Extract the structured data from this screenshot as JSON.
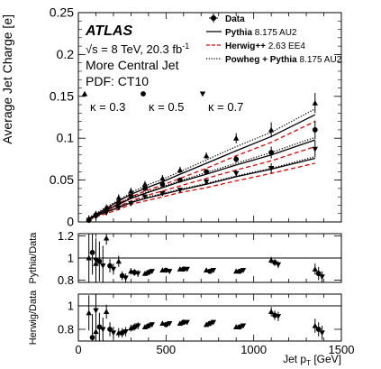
{
  "chart_data": [
    {
      "type": "scatter",
      "panel": "main",
      "ylabel": "Average Jet Charge [e]",
      "xlim": [
        0,
        1500
      ],
      "ylim": [
        0,
        0.25
      ],
      "yticks": [
        "0",
        "0.05",
        "0.1",
        "0.15",
        "0.2",
        "0.25"
      ],
      "annotations": {
        "experiment": "ATLAS",
        "energy_prefix": "√s = 8 TeV, 20.3 fb",
        "energy_sup": "-1",
        "selection": "More Central Jet",
        "pdf": "PDF: CT10"
      },
      "kappa_labels": [
        {
          "marker": "triangle-up",
          "text": "κ = 0.3"
        },
        {
          "marker": "circle",
          "text": "κ = 0.5"
        },
        {
          "marker": "triangle-down",
          "text": "κ = 0.7"
        }
      ],
      "legend": [
        {
          "style": "marker",
          "bold": "Data",
          "rest": ""
        },
        {
          "style": "solid",
          "bold": "Pythia",
          "rest": " 8.175 AU2"
        },
        {
          "style": "dashed",
          "bold": "Herwig++",
          "rest": " 2.63 EE4"
        },
        {
          "style": "dotted",
          "bold": "Powheg + Pythia",
          "rest": " 8.175 AU2"
        }
      ],
      "series": [
        {
          "name": "κ = 0.3",
          "marker": "triangle-up",
          "x": [
            60,
            100,
            160,
            230,
            300,
            380,
            480,
            580,
            730,
            900,
            1100,
            1350
          ],
          "y": [
            0.004,
            0.01,
            0.017,
            0.029,
            0.037,
            0.045,
            0.052,
            0.062,
            0.079,
            0.1,
            0.11,
            0.142
          ],
          "err": [
            0.004,
            0.003,
            0.004,
            0.004,
            0.004,
            0.004,
            0.004,
            0.004,
            0.004,
            0.006,
            0.009,
            0.012
          ],
          "pythia": [
            0.004,
            0.009,
            0.016,
            0.025,
            0.033,
            0.04,
            0.048,
            0.057,
            0.07,
            0.085,
            0.102,
            0.128
          ],
          "herwig": [
            0.003,
            0.008,
            0.015,
            0.022,
            0.03,
            0.037,
            0.044,
            0.052,
            0.064,
            0.079,
            0.095,
            0.12
          ],
          "powheg": [
            0.005,
            0.01,
            0.018,
            0.026,
            0.035,
            0.043,
            0.051,
            0.06,
            0.074,
            0.09,
            0.107,
            0.135
          ]
        },
        {
          "name": "κ = 0.5",
          "marker": "circle",
          "x": [
            60,
            100,
            160,
            230,
            300,
            380,
            480,
            580,
            730,
            900,
            1100,
            1350
          ],
          "y": [
            0.002,
            0.008,
            0.015,
            0.023,
            0.031,
            0.04,
            0.045,
            0.05,
            0.06,
            0.075,
            0.083,
            0.11
          ],
          "err": [
            0.003,
            0.003,
            0.003,
            0.003,
            0.003,
            0.003,
            0.003,
            0.003,
            0.003,
            0.004,
            0.007,
            0.011
          ],
          "pythia": [
            0.004,
            0.008,
            0.014,
            0.021,
            0.028,
            0.034,
            0.041,
            0.048,
            0.057,
            0.068,
            0.08,
            0.098
          ],
          "herwig": [
            0.003,
            0.007,
            0.012,
            0.019,
            0.025,
            0.031,
            0.037,
            0.043,
            0.052,
            0.062,
            0.073,
            0.09
          ],
          "powheg": [
            0.004,
            0.008,
            0.014,
            0.022,
            0.029,
            0.035,
            0.042,
            0.049,
            0.059,
            0.07,
            0.083,
            0.101
          ]
        },
        {
          "name": "κ = 0.7",
          "marker": "triangle-down",
          "x": [
            60,
            100,
            160,
            230,
            300,
            380,
            480,
            580,
            730,
            900,
            1100,
            1350
          ],
          "y": [
            0.002,
            0.006,
            0.011,
            0.017,
            0.022,
            0.03,
            0.034,
            0.038,
            0.048,
            0.058,
            0.064,
            0.087
          ],
          "err": [
            0.003,
            0.003,
            0.003,
            0.003,
            0.003,
            0.003,
            0.003,
            0.003,
            0.003,
            0.004,
            0.006,
            0.01
          ],
          "pythia": [
            0.003,
            0.007,
            0.012,
            0.017,
            0.023,
            0.028,
            0.033,
            0.038,
            0.045,
            0.054,
            0.063,
            0.076
          ],
          "herwig": [
            0.002,
            0.006,
            0.01,
            0.015,
            0.021,
            0.025,
            0.03,
            0.035,
            0.041,
            0.049,
            0.058,
            0.07
          ],
          "powheg": [
            0.003,
            0.007,
            0.012,
            0.018,
            0.024,
            0.029,
            0.034,
            0.039,
            0.046,
            0.055,
            0.064,
            0.078
          ]
        }
      ]
    },
    {
      "type": "scatter",
      "panel": "ratio-pythia",
      "ylabel": "Pythia/Data",
      "xlim": [
        0,
        1500
      ],
      "ylim": [
        0.78,
        1.22
      ],
      "yticks": [
        "0.8",
        "1",
        "1.2"
      ],
      "reference_line": 1,
      "series": [
        {
          "name": "κ = 0.3",
          "marker": "triangle-up",
          "x": [
            60,
            100,
            160,
            230,
            300,
            380,
            480,
            580,
            730,
            900,
            1100,
            1350
          ],
          "y": [
            1.0,
            0.95,
            1.18,
            0.97,
            0.88,
            0.86,
            0.89,
            0.9,
            0.89,
            0.88,
            0.98,
            0.9
          ],
          "err": [
            0.25,
            0.2,
            0.06,
            0.05,
            0.03,
            0.02,
            0.02,
            0.02,
            0.02,
            0.02,
            0.03,
            0.05
          ]
        },
        {
          "name": "κ = 0.5",
          "marker": "circle",
          "x": [
            80,
            120,
            180,
            250,
            320,
            400,
            500,
            600,
            750,
            920,
            1120,
            1370
          ],
          "y": [
            1.05,
            0.97,
            0.93,
            0.84,
            0.87,
            0.87,
            0.89,
            0.9,
            0.88,
            0.88,
            0.96,
            0.86
          ],
          "err": [
            0.2,
            0.18,
            0.06,
            0.04,
            0.03,
            0.02,
            0.02,
            0.02,
            0.02,
            0.02,
            0.03,
            0.06
          ]
        },
        {
          "name": "κ = 0.7",
          "marker": "triangle-down",
          "x": [
            100,
            140,
            200,
            270,
            340,
            420,
            520,
            620,
            770,
            940,
            1140,
            1390
          ],
          "y": [
            0.98,
            0.93,
            0.9,
            0.82,
            0.86,
            0.88,
            0.88,
            0.9,
            0.89,
            0.89,
            0.94,
            0.83
          ],
          "err": [
            0.2,
            0.18,
            0.05,
            0.04,
            0.03,
            0.02,
            0.02,
            0.02,
            0.02,
            0.02,
            0.03,
            0.05
          ]
        }
      ]
    },
    {
      "type": "scatter",
      "panel": "ratio-herwig",
      "ylabel": "Herwig/Data",
      "xlabel_prefix": "Jet p",
      "xlabel_sub": "T",
      "xlabel_suffix": " [GeV]",
      "xlim": [
        0,
        1500
      ],
      "ylim": [
        0.7,
        1.1
      ],
      "yticks": [
        "0.8",
        "1"
      ],
      "xticks": [
        "0",
        "500",
        "1000",
        "1500"
      ],
      "reference_line": 1,
      "series": [
        {
          "name": "κ = 0.3",
          "marker": "triangle-up",
          "x": [
            60,
            100,
            160,
            230,
            300,
            380,
            480,
            580,
            730,
            900,
            1100,
            1350
          ],
          "y": [
            0.94,
            0.78,
            0.95,
            0.77,
            0.81,
            0.82,
            0.85,
            0.85,
            0.84,
            0.82,
            0.95,
            0.83
          ],
          "err": [
            0.15,
            0.1,
            0.06,
            0.04,
            0.03,
            0.02,
            0.02,
            0.02,
            0.02,
            0.02,
            0.04,
            0.06
          ]
        },
        {
          "name": "κ = 0.5",
          "marker": "circle",
          "x": [
            80,
            120,
            180,
            250,
            320,
            400,
            500,
            600,
            750,
            920,
            1120,
            1370
          ],
          "y": [
            0.73,
            0.82,
            0.8,
            0.77,
            0.82,
            0.83,
            0.84,
            0.86,
            0.85,
            0.82,
            0.92,
            0.8
          ],
          "err": [
            0.2,
            0.12,
            0.06,
            0.04,
            0.03,
            0.02,
            0.02,
            0.02,
            0.02,
            0.02,
            0.04,
            0.06
          ]
        },
        {
          "name": "κ = 0.7",
          "marker": "triangle-down",
          "x": [
            100,
            140,
            200,
            270,
            340,
            420,
            520,
            620,
            770,
            940,
            1140,
            1390
          ],
          "y": [
            0.96,
            0.8,
            0.77,
            0.78,
            0.83,
            0.84,
            0.85,
            0.86,
            0.86,
            0.83,
            0.91,
            0.77
          ],
          "err": [
            0.15,
            0.1,
            0.05,
            0.04,
            0.03,
            0.02,
            0.02,
            0.02,
            0.02,
            0.02,
            0.04,
            0.06
          ]
        }
      ]
    }
  ]
}
